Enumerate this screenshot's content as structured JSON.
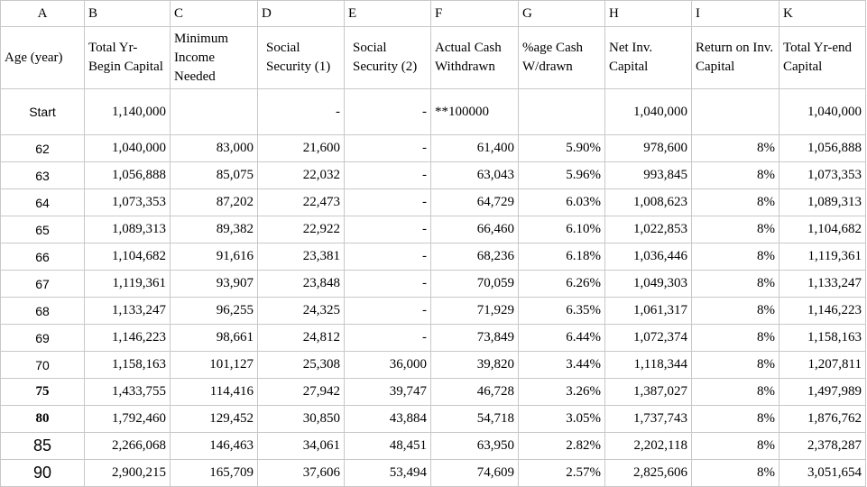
{
  "columns": {
    "letters": [
      "A",
      "B",
      "C",
      "D",
      "E",
      "F",
      "G",
      "H",
      "I",
      "K"
    ],
    "headers": [
      "Age (year)",
      "Total Yr-Begin Capital",
      "Minimum Income Needed",
      "Social Security (1)",
      "Social Security (2)",
      "Actual Cash Withdrawn",
      "%age Cash W/drawn",
      "Net Inv. Capital",
      "Return on Inv. Capital",
      "Total Yr-end Capital"
    ]
  },
  "start_row": {
    "age": "Start",
    "total_begin": "1,140,000",
    "min_income": "",
    "ss1": "-",
    "ss2": "-",
    "withdrawn": "**100000",
    "pct": "",
    "net_inv": "1,040,000",
    "return": "",
    "total_end": "1,040,000"
  },
  "rows": [
    {
      "age": "62",
      "total_begin": "1,040,000",
      "min_income": "83,000",
      "ss1": "21,600",
      "ss2": "-",
      "withdrawn": "61,400",
      "pct": "5.90%",
      "net_inv": "978,600",
      "return": "8%",
      "total_end": "1,056,888"
    },
    {
      "age": "63",
      "total_begin": "1,056,888",
      "min_income": "85,075",
      "ss1": "22,032",
      "ss2": "-",
      "withdrawn": "63,043",
      "pct": "5.96%",
      "net_inv": "993,845",
      "return": "8%",
      "total_end": "1,073,353"
    },
    {
      "age": "64",
      "total_begin": "1,073,353",
      "min_income": "87,202",
      "ss1": "22,473",
      "ss2": "-",
      "withdrawn": "64,729",
      "pct": "6.03%",
      "net_inv": "1,008,623",
      "return": "8%",
      "total_end": "1,089,313"
    },
    {
      "age": "65",
      "total_begin": "1,089,313",
      "min_income": "89,382",
      "ss1": "22,922",
      "ss2": "-",
      "withdrawn": "66,460",
      "pct": "6.10%",
      "net_inv": "1,022,853",
      "return": "8%",
      "total_end": "1,104,682"
    },
    {
      "age": "66",
      "total_begin": "1,104,682",
      "min_income": "91,616",
      "ss1": "23,381",
      "ss2": "-",
      "withdrawn": "68,236",
      "pct": "6.18%",
      "net_inv": "1,036,446",
      "return": "8%",
      "total_end": "1,119,361"
    },
    {
      "age": "67",
      "total_begin": "1,119,361",
      "min_income": "93,907",
      "ss1": "23,848",
      "ss2": "-",
      "withdrawn": "70,059",
      "pct": "6.26%",
      "net_inv": "1,049,303",
      "return": "8%",
      "total_end": "1,133,247"
    },
    {
      "age": "68",
      "total_begin": "1,133,247",
      "min_income": "96,255",
      "ss1": "24,325",
      "ss2": "-",
      "withdrawn": "71,929",
      "pct": "6.35%",
      "net_inv": "1,061,317",
      "return": "8%",
      "total_end": "1,146,223"
    },
    {
      "age": "69",
      "total_begin": "1,146,223",
      "min_income": "98,661",
      "ss1": "24,812",
      "ss2": "-",
      "withdrawn": "73,849",
      "pct": "6.44%",
      "net_inv": "1,072,374",
      "return": "8%",
      "total_end": "1,158,163"
    },
    {
      "age": "70",
      "total_begin": "1,158,163",
      "min_income": "101,127",
      "ss1": "25,308",
      "ss2": "36,000",
      "withdrawn": "39,820",
      "pct": "3.44%",
      "net_inv": "1,118,344",
      "return": "8%",
      "total_end": "1,207,811"
    },
    {
      "age": "75",
      "total_begin": "1,433,755",
      "min_income": "114,416",
      "ss1": "27,942",
      "ss2": "39,747",
      "withdrawn": "46,728",
      "pct": "3.26%",
      "net_inv": "1,387,027",
      "return": "8%",
      "total_end": "1,497,989"
    },
    {
      "age": "80",
      "total_begin": "1,792,460",
      "min_income": "129,452",
      "ss1": "30,850",
      "ss2": "43,884",
      "withdrawn": "54,718",
      "pct": "3.05%",
      "net_inv": "1,737,743",
      "return": "8%",
      "total_end": "1,876,762"
    },
    {
      "age": "85",
      "total_begin": "2,266,068",
      "min_income": "146,463",
      "ss1": "34,061",
      "ss2": "48,451",
      "withdrawn": "63,950",
      "pct": "2.82%",
      "net_inv": "2,202,118",
      "return": "8%",
      "total_end": "2,378,287"
    },
    {
      "age": "90",
      "total_begin": "2,900,215",
      "min_income": "165,709",
      "ss1": "37,606",
      "ss2": "53,494",
      "withdrawn": "74,609",
      "pct": "2.57%",
      "net_inv": "2,825,606",
      "return": "8%",
      "total_end": "3,051,654"
    }
  ]
}
